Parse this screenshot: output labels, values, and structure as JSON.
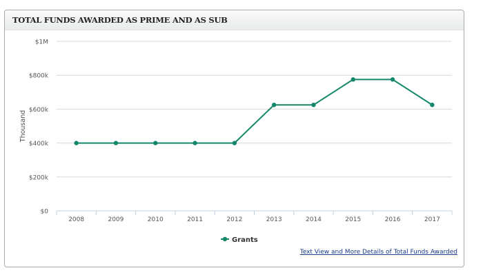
{
  "panel": {
    "title": "TOTAL FUNDS AWARDED AS PRIME AND AS SUB",
    "link": "Text View and More Details of Total Funds Awarded"
  },
  "chart_data": {
    "type": "line",
    "title": "TOTAL FUNDS AWARDED AS PRIME AND AS SUB",
    "xlabel": "",
    "ylabel": "Thousand",
    "categories": [
      "2008",
      "2009",
      "2010",
      "2011",
      "2012",
      "2013",
      "2014",
      "2015",
      "2016",
      "2017"
    ],
    "series": [
      {
        "name": "Grants",
        "color": "#14876b",
        "values": [
          400,
          400,
          400,
          400,
          400,
          625,
          625,
          775,
          775,
          625
        ]
      }
    ],
    "ylim": [
      0,
      1000
    ],
    "yticks": [
      0,
      200,
      400,
      600,
      800,
      1000
    ],
    "ytick_labels": [
      "$0",
      "$200k",
      "$400k",
      "$600k",
      "$800k",
      "$1M"
    ],
    "grid": true,
    "legend": "bottom-center"
  }
}
